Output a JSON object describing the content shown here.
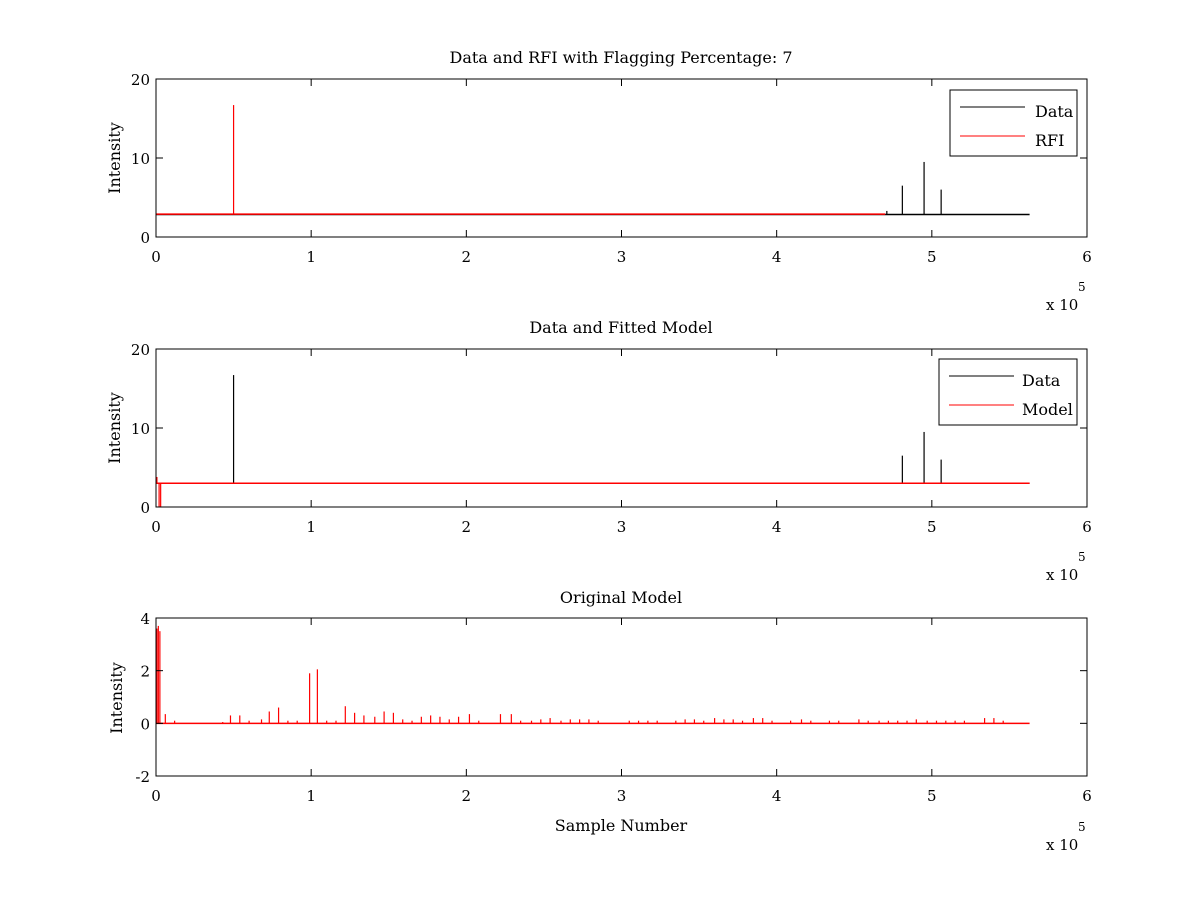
{
  "colors": {
    "data": "#000000",
    "rfi": "#ff0000",
    "model": "#ff0000",
    "axes": "#000000",
    "background": "#ffffff"
  },
  "chart_data": [
    {
      "type": "line",
      "title": "Data and RFI with Flagging Percentage: 7",
      "xlabel": "",
      "ylabel": "Intensity",
      "xlim": [
        0,
        600000
      ],
      "ylim": [
        0,
        20
      ],
      "xtick_labels": [
        "0",
        "1",
        "2",
        "3",
        "4",
        "5",
        "6"
      ],
      "ytick_labels": [
        "0",
        "10",
        "20"
      ],
      "x_exponent_label": "x 10",
      "x_exponent": "5",
      "grid": false,
      "legend_position": "top-right",
      "series": [
        {
          "name": "Data",
          "color": "#000000",
          "baseline_x": [
            0,
            563000
          ],
          "baseline_y": 2.85,
          "spikes": [
            {
              "x": 481000,
              "y": 6.5
            },
            {
              "x": 495000,
              "y": 9.5
            },
            {
              "x": 506000,
              "y": 6.0
            },
            {
              "x": 471000,
              "y": 3.3
            }
          ]
        },
        {
          "name": "RFI",
          "color": "#ff0000",
          "baseline_x": [
            0,
            470000
          ],
          "baseline_y": 2.9,
          "spikes": [
            {
              "x": 50000,
              "y": 16.7
            }
          ]
        }
      ]
    },
    {
      "type": "line",
      "title": "Data and Fitted Model",
      "xlabel": "",
      "ylabel": "Intensity",
      "xlim": [
        0,
        600000
      ],
      "ylim": [
        0,
        20
      ],
      "xtick_labels": [
        "0",
        "1",
        "2",
        "3",
        "4",
        "5",
        "6"
      ],
      "ytick_labels": [
        "0",
        "10",
        "20"
      ],
      "x_exponent_label": "x 10",
      "x_exponent": "5",
      "grid": false,
      "legend_position": "top-right",
      "series": [
        {
          "name": "Data",
          "color": "#000000",
          "baseline_x": [
            0,
            563000
          ],
          "baseline_y": 3.0,
          "spikes": [
            {
              "x": 50000,
              "y": 16.7
            },
            {
              "x": 481000,
              "y": 6.5
            },
            {
              "x": 495000,
              "y": 9.5
            },
            {
              "x": 506000,
              "y": 6.0
            }
          ]
        },
        {
          "name": "Model",
          "color": "#ff0000",
          "baseline_x": [
            0,
            563000
          ],
          "baseline_y": 3.0,
          "spikes": [
            {
              "x": 600,
              "y": 3.8
            },
            {
              "x": 2000,
              "y": 0.0
            },
            {
              "x": 3000,
              "y": 0.0
            }
          ]
        }
      ]
    },
    {
      "type": "line",
      "title": "Original Model",
      "xlabel": "Sample Number",
      "ylabel": "Intensity",
      "xlim": [
        0,
        600000
      ],
      "ylim": [
        -2,
        4
      ],
      "xtick_labels": [
        "0",
        "1",
        "2",
        "3",
        "4",
        "5",
        "6"
      ],
      "ytick_labels": [
        "-2",
        "0",
        "2",
        "4"
      ],
      "x_exponent_label": "x 10",
      "x_exponent": "5",
      "grid": false,
      "legend_position": "none",
      "series": [
        {
          "color": "#ff0000",
          "baseline_x": [
            0,
            563000
          ],
          "baseline_y": 0.0,
          "spikes": [
            {
              "x": 600,
              "y": 3.6
            },
            {
              "x": 1500,
              "y": 3.7
            },
            {
              "x": 2500,
              "y": 3.5
            },
            {
              "x": 6000,
              "y": 0.35
            },
            {
              "x": 12000,
              "y": 0.1
            },
            {
              "x": 43000,
              "y": 0.05
            },
            {
              "x": 48000,
              "y": 0.3
            },
            {
              "x": 54000,
              "y": 0.3
            },
            {
              "x": 60000,
              "y": 0.1
            },
            {
              "x": 68000,
              "y": 0.15
            },
            {
              "x": 73000,
              "y": 0.45
            },
            {
              "x": 79000,
              "y": 0.6
            },
            {
              "x": 85000,
              "y": 0.1
            },
            {
              "x": 91000,
              "y": 0.1
            },
            {
              "x": 99000,
              "y": 1.9
            },
            {
              "x": 104000,
              "y": 2.05
            },
            {
              "x": 110000,
              "y": 0.1
            },
            {
              "x": 116000,
              "y": 0.1
            },
            {
              "x": 122000,
              "y": 0.65
            },
            {
              "x": 128000,
              "y": 0.4
            },
            {
              "x": 134000,
              "y": 0.3
            },
            {
              "x": 141000,
              "y": 0.25
            },
            {
              "x": 147000,
              "y": 0.45
            },
            {
              "x": 153000,
              "y": 0.4
            },
            {
              "x": 159000,
              "y": 0.15
            },
            {
              "x": 165000,
              "y": 0.1
            },
            {
              "x": 171000,
              "y": 0.25
            },
            {
              "x": 177000,
              "y": 0.3
            },
            {
              "x": 183000,
              "y": 0.25
            },
            {
              "x": 189000,
              "y": 0.15
            },
            {
              "x": 195000,
              "y": 0.25
            },
            {
              "x": 202000,
              "y": 0.35
            },
            {
              "x": 208000,
              "y": 0.1
            },
            {
              "x": 222000,
              "y": 0.35
            },
            {
              "x": 229000,
              "y": 0.35
            },
            {
              "x": 235000,
              "y": 0.1
            },
            {
              "x": 242000,
              "y": 0.1
            },
            {
              "x": 248000,
              "y": 0.15
            },
            {
              "x": 254000,
              "y": 0.2
            },
            {
              "x": 261000,
              "y": 0.1
            },
            {
              "x": 267000,
              "y": 0.15
            },
            {
              "x": 273000,
              "y": 0.15
            },
            {
              "x": 279000,
              "y": 0.15
            },
            {
              "x": 285000,
              "y": 0.1
            },
            {
              "x": 305000,
              "y": 0.1
            },
            {
              "x": 311000,
              "y": 0.1
            },
            {
              "x": 317000,
              "y": 0.1
            },
            {
              "x": 323000,
              "y": 0.1
            },
            {
              "x": 335000,
              "y": 0.1
            },
            {
              "x": 341000,
              "y": 0.15
            },
            {
              "x": 347000,
              "y": 0.15
            },
            {
              "x": 353000,
              "y": 0.1
            },
            {
              "x": 360000,
              "y": 0.2
            },
            {
              "x": 366000,
              "y": 0.15
            },
            {
              "x": 372000,
              "y": 0.15
            },
            {
              "x": 378000,
              "y": 0.1
            },
            {
              "x": 385000,
              "y": 0.2
            },
            {
              "x": 391000,
              "y": 0.2
            },
            {
              "x": 397000,
              "y": 0.1
            },
            {
              "x": 409000,
              "y": 0.1
            },
            {
              "x": 416000,
              "y": 0.15
            },
            {
              "x": 422000,
              "y": 0.1
            },
            {
              "x": 434000,
              "y": 0.1
            },
            {
              "x": 440000,
              "y": 0.1
            },
            {
              "x": 453000,
              "y": 0.15
            },
            {
              "x": 459000,
              "y": 0.1
            },
            {
              "x": 466000,
              "y": 0.1
            },
            {
              "x": 472000,
              "y": 0.1
            },
            {
              "x": 478000,
              "y": 0.1
            },
            {
              "x": 484000,
              "y": 0.1
            },
            {
              "x": 490000,
              "y": 0.15
            },
            {
              "x": 497000,
              "y": 0.1
            },
            {
              "x": 503000,
              "y": 0.1
            },
            {
              "x": 509000,
              "y": 0.1
            },
            {
              "x": 515000,
              "y": 0.1
            },
            {
              "x": 521000,
              "y": 0.1
            },
            {
              "x": 534000,
              "y": 0.2
            },
            {
              "x": 540000,
              "y": 0.2
            },
            {
              "x": 546000,
              "y": 0.1
            }
          ]
        }
      ]
    }
  ]
}
